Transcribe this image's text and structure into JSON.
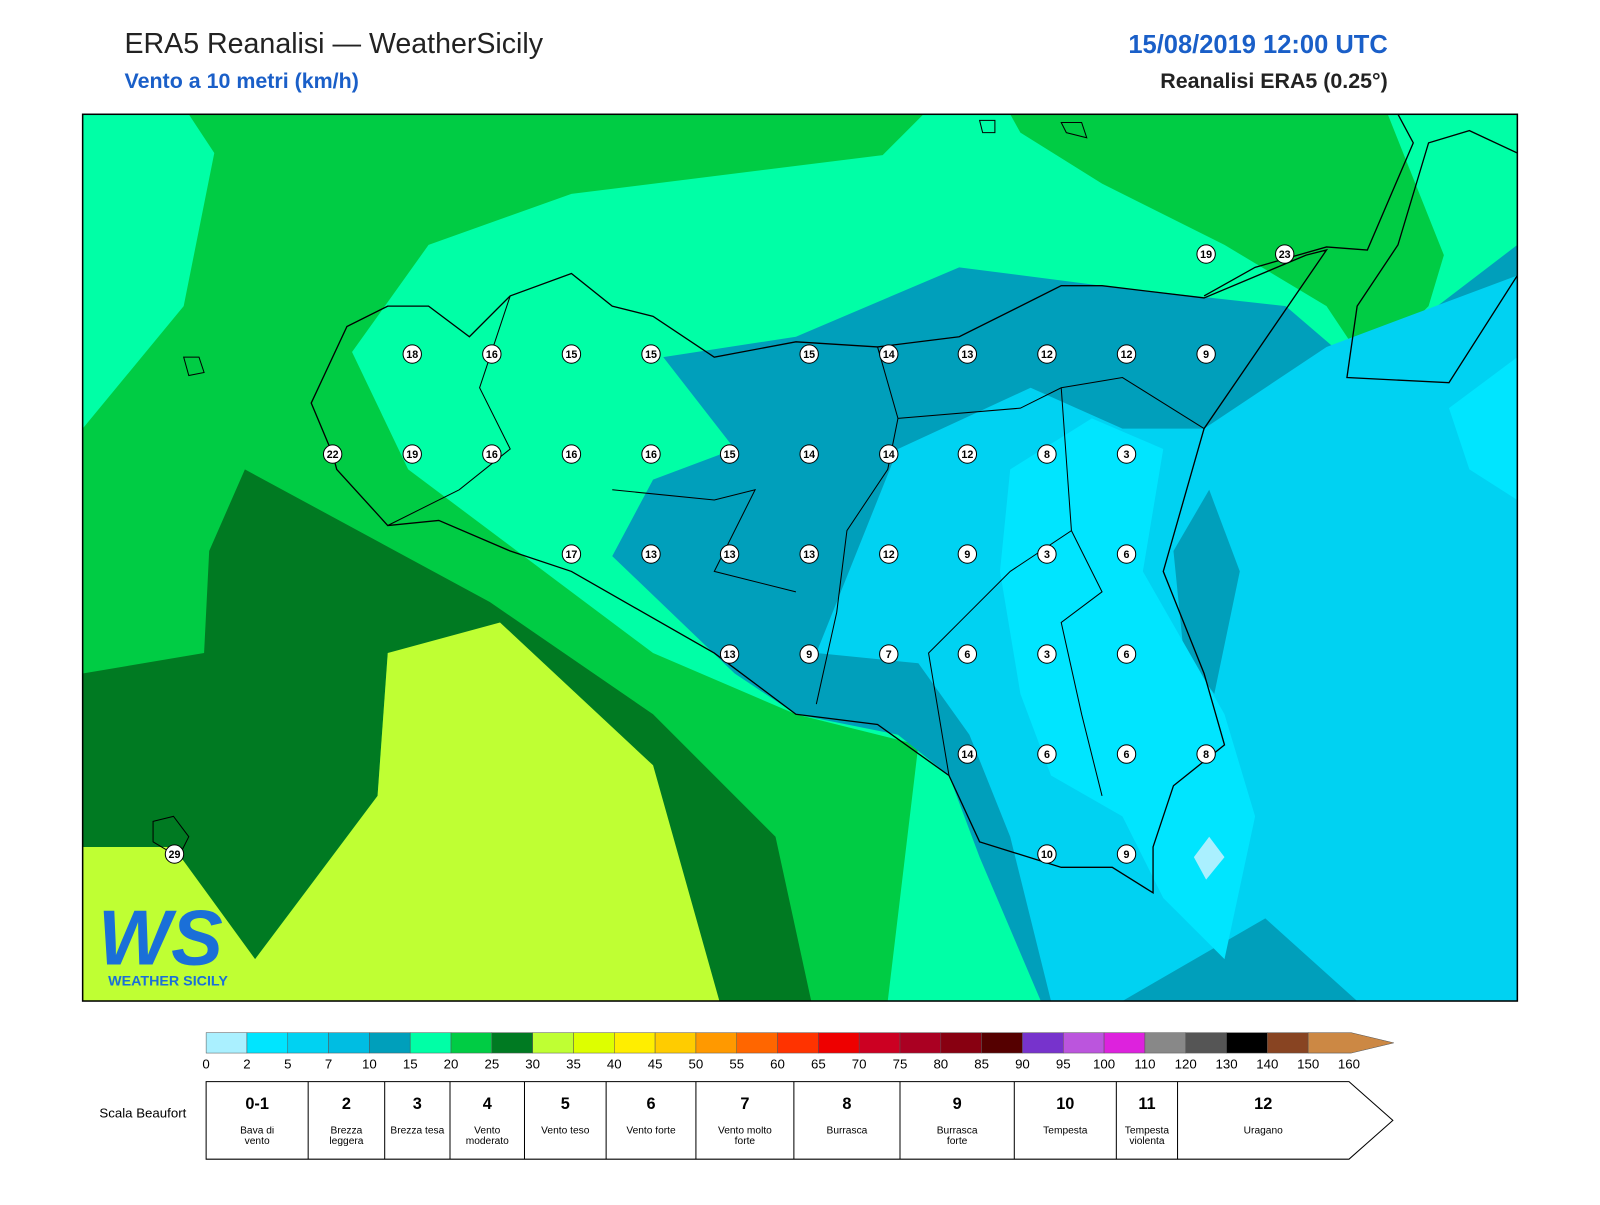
{
  "header": {
    "title": "ERA5 Reanalisi — WeatherSicily",
    "subtitle": "Vento a 10 metri (km/h)",
    "datetime": "15/08/2019 12:00 UTC",
    "source": "Reanalisi ERA5 (0.25°)"
  },
  "stations": [
    19,
    23,
    18,
    16,
    15,
    15,
    15,
    14,
    13,
    12,
    12,
    9,
    22,
    19,
    16,
    16,
    16,
    15,
    14,
    14,
    12,
    8,
    3,
    17,
    13,
    13,
    13,
    12,
    9,
    3,
    6,
    13,
    9,
    7,
    6,
    3,
    6,
    14,
    6,
    6,
    8,
    29,
    10,
    9
  ],
  "logo": {
    "text": "WS",
    "caption": "WEATHER SICILY"
  },
  "colorbar": {
    "ticks": [
      0,
      2,
      5,
      7,
      10,
      15,
      20,
      25,
      30,
      35,
      40,
      45,
      50,
      55,
      60,
      65,
      70,
      75,
      80,
      85,
      90,
      95,
      100,
      110,
      120,
      130,
      140,
      150,
      160
    ],
    "colors": [
      "#aaf0ff",
      "#00e5ff",
      "#00d2f2",
      "#00bde2",
      "#009fbb",
      "#00ffa6",
      "#00cc44",
      "#007a22",
      "#bfff33",
      "#ddff00",
      "#ffee00",
      "#ffcc00",
      "#ff9900",
      "#ff6600",
      "#ff3300",
      "#ee0000",
      "#cc0022",
      "#aa0022",
      "#880011",
      "#550000",
      "#7733cc",
      "#bb55dd",
      "#dd22dd",
      "#888888",
      "#555555",
      "#000000",
      "#884422",
      "#cc8844"
    ]
  },
  "beaufort": {
    "label": "Scala Beaufort",
    "levels": [
      {
        "force": "0-1",
        "name": "Bava di vento"
      },
      {
        "force": "2",
        "name": "Brezza leggera"
      },
      {
        "force": "3",
        "name": "Brezza tesa"
      },
      {
        "force": "4",
        "name": "Vento moderato"
      },
      {
        "force": "5",
        "name": "Vento teso"
      },
      {
        "force": "6",
        "name": "Vento forte"
      },
      {
        "force": "7",
        "name": "Vento molto forte"
      },
      {
        "force": "8",
        "name": "Burrasca"
      },
      {
        "force": "9",
        "name": "Burrasca forte"
      },
      {
        "force": "10",
        "name": "Tempesta"
      },
      {
        "force": "11",
        "name": "Tempesta violenta"
      },
      {
        "force": "12",
        "name": "Uragano"
      }
    ]
  }
}
